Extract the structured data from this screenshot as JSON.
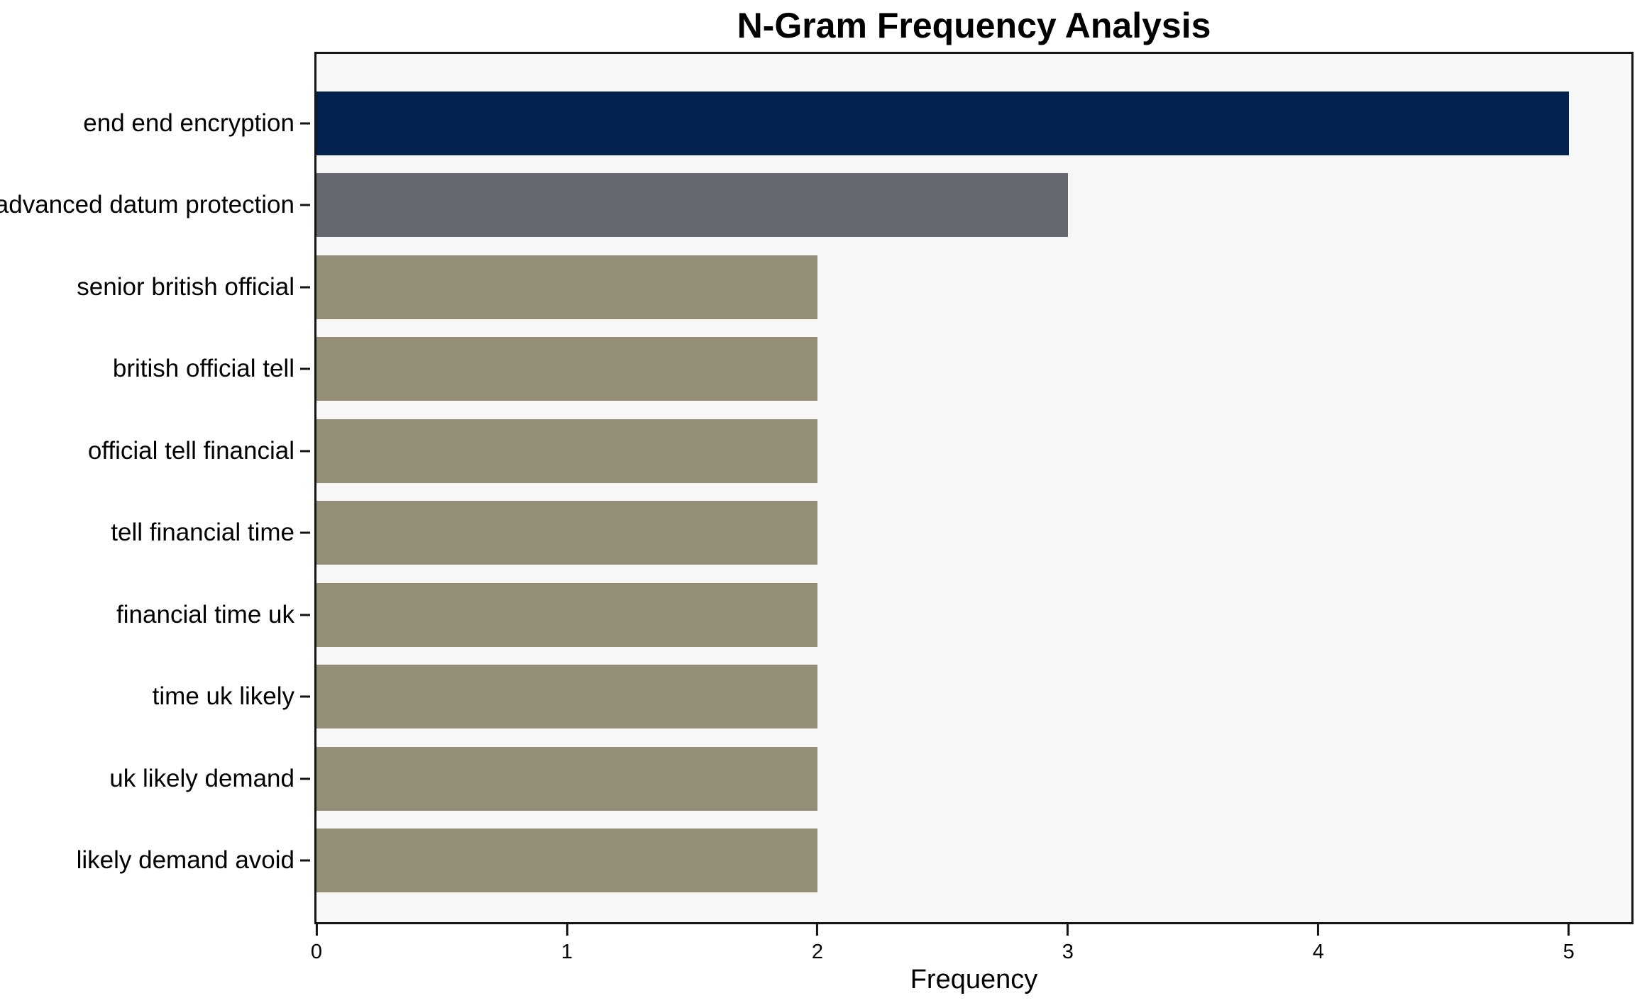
{
  "chart_data": {
    "type": "bar",
    "orientation": "horizontal",
    "title": "N-Gram Frequency Analysis",
    "xlabel": "Frequency",
    "categories": [
      "end end encryption",
      "advanced datum protection",
      "senior british official",
      "british official tell",
      "official tell financial",
      "tell financial time",
      "financial time uk",
      "time uk likely",
      "uk likely demand",
      "likely demand avoid"
    ],
    "values": [
      5,
      3,
      2,
      2,
      2,
      2,
      2,
      2,
      2,
      2
    ],
    "bar_colors": [
      "#02234e",
      "#65686f",
      "#948e76",
      "#948e76",
      "#948e76",
      "#948e76",
      "#948e76",
      "#948e76",
      "#948e76",
      "#948e76"
    ],
    "x_ticks": [
      "0",
      "1",
      "2",
      "3",
      "4",
      "5"
    ],
    "xlim": [
      0,
      5.25
    ],
    "grid": false,
    "legend_position": "none",
    "plot_background": "#f7f7f7",
    "figure_background": "#ffffff",
    "spine_color": "#141414"
  }
}
